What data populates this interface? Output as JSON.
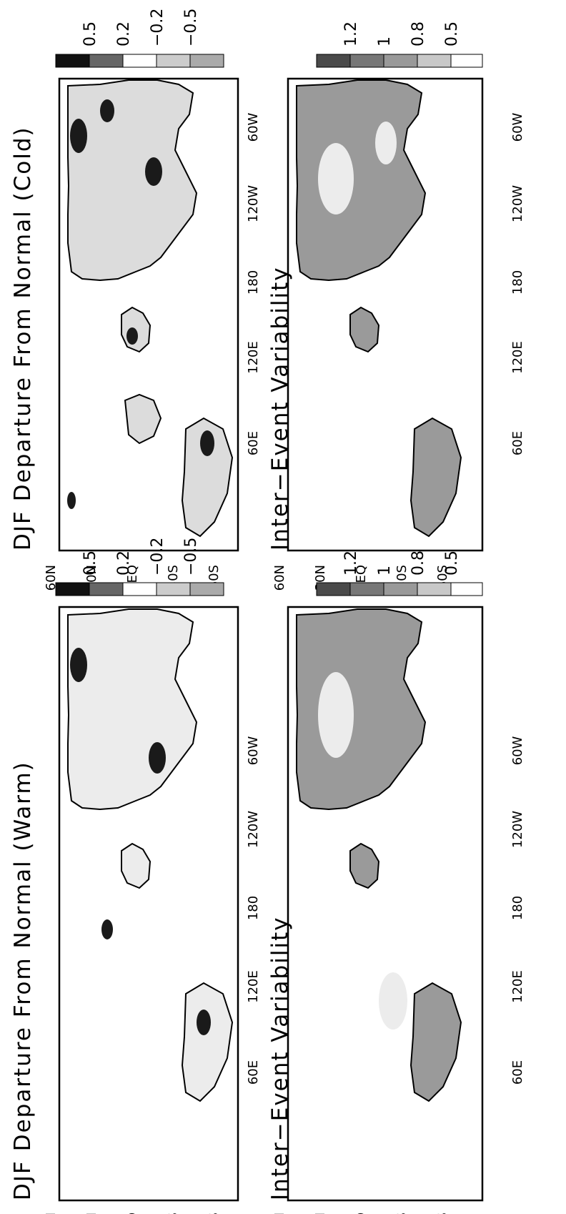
{
  "panels": [
    {
      "id": "warm-departure",
      "title": "DJF Departure From Normal (Warm)",
      "legend": [
        "0.5",
        "0.2",
        "−0.2",
        "−0.5"
      ],
      "legend_colors": [
        "#111111",
        "#666666",
        "#ffffff",
        "#cccccc",
        "#aaaaaa"
      ]
    },
    {
      "id": "cold-departure",
      "title": "DJF Departure From Normal (Cold)",
      "legend": [
        "0.5",
        "0.2",
        "−0.2",
        "−0.5"
      ],
      "legend_colors": [
        "#111111",
        "#666666",
        "#ffffff",
        "#cccccc",
        "#aaaaaa"
      ]
    },
    {
      "id": "warm-variability",
      "title": "Inter−Event Variability",
      "legend": [
        "1.2",
        "1",
        "0.8",
        "0.5"
      ],
      "legend_colors": [
        "#4a4a4a",
        "#777777",
        "#999999",
        "#c8c8c8",
        "#ffffff"
      ]
    },
    {
      "id": "cold-variability",
      "title": "Inter−Event Variability",
      "legend": [
        "1.2",
        "1",
        "0.8",
        "0.5"
      ],
      "legend_colors": [
        "#4a4a4a",
        "#777777",
        "#999999",
        "#c8c8c8",
        "#ffffff"
      ]
    }
  ],
  "lat_ticks": [
    "60N",
    "30N",
    "EQ",
    "30S",
    "60S"
  ],
  "lon_ticks": [
    "60E",
    "120E",
    "180",
    "120W",
    "60W"
  ]
}
